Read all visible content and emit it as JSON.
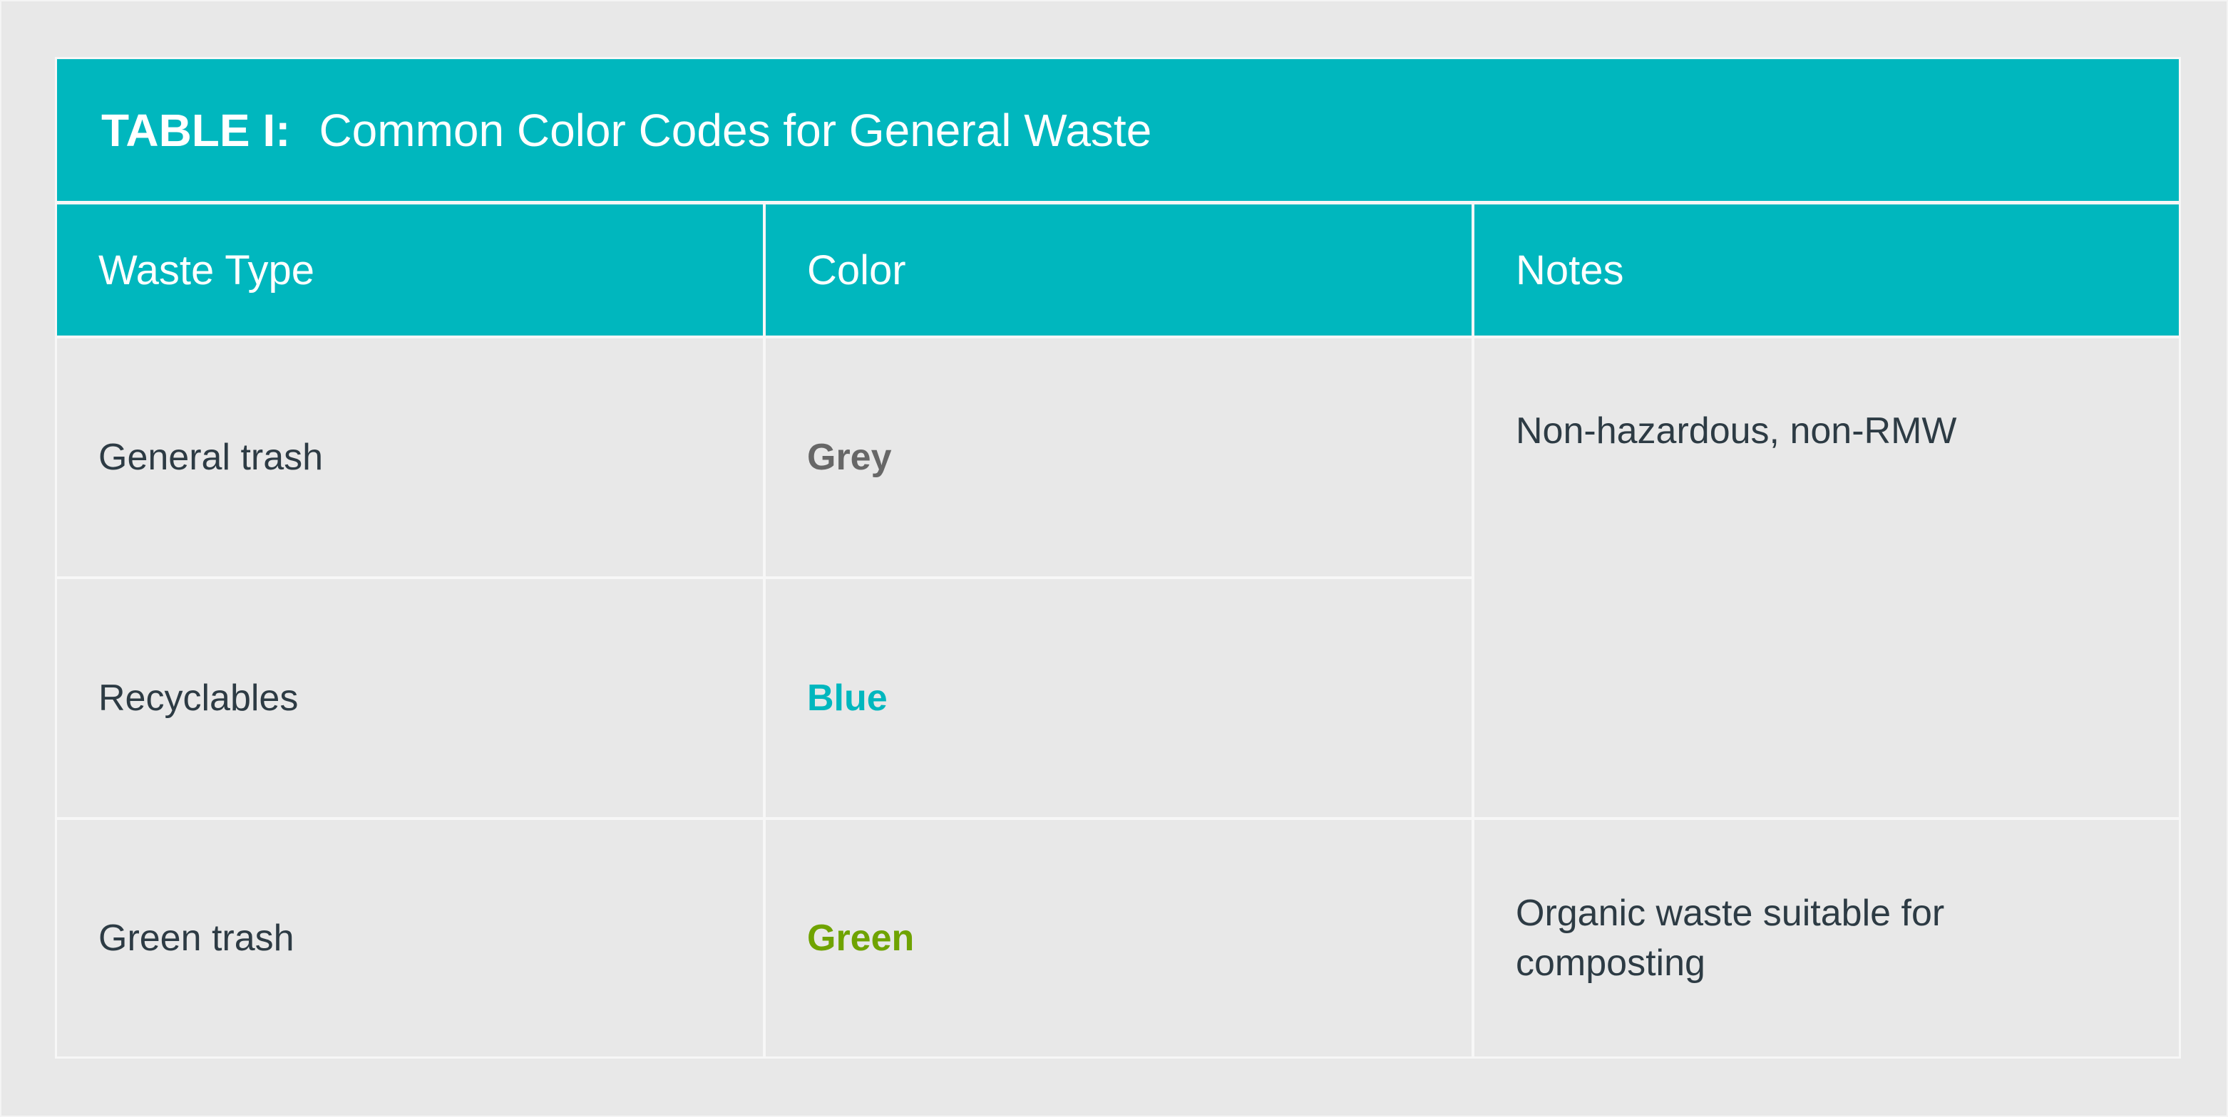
{
  "table": {
    "label": "TABLE I:",
    "title": "Common Color Codes for General Waste",
    "headers": [
      "Waste Type",
      "Color",
      "Notes"
    ],
    "rows": [
      {
        "waste_type": "General trash",
        "color": "Grey",
        "color_hex": "#676767"
      },
      {
        "waste_type": "Recyclables",
        "color": "Blue",
        "color_hex": "#00b7be"
      },
      {
        "waste_type": "Green trash",
        "color": "Green",
        "color_hex": "#6fa300"
      }
    ],
    "notes": [
      "Non-hazardous, non-RMW",
      "Organic waste suitable for composting"
    ]
  },
  "colors": {
    "accent": "#00b7be",
    "background": "#e8e8e8",
    "text": "#2d3b44"
  }
}
